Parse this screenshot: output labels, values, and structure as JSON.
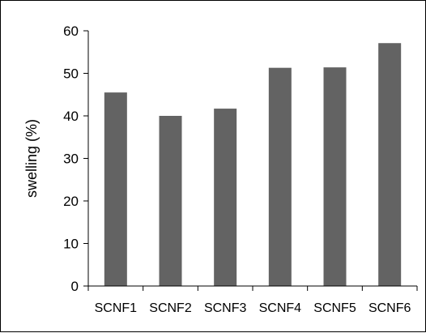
{
  "chart_data": {
    "type": "bar",
    "title": "",
    "xlabel": "",
    "ylabel": "swelling (%)",
    "categories": [
      "SCNF1",
      "SCNF2",
      "SCNF3",
      "SCNF4",
      "SCNF5",
      "SCNF6"
    ],
    "values": [
      45.5,
      40.0,
      41.7,
      51.3,
      51.4,
      57.1
    ],
    "ylim": [
      0,
      60
    ],
    "yticks": [
      "0",
      "10",
      "20",
      "30",
      "40",
      "50",
      "60"
    ],
    "grid": false,
    "legend": "none",
    "colors": {
      "bar": "#636363",
      "axis": "#000000"
    }
  }
}
